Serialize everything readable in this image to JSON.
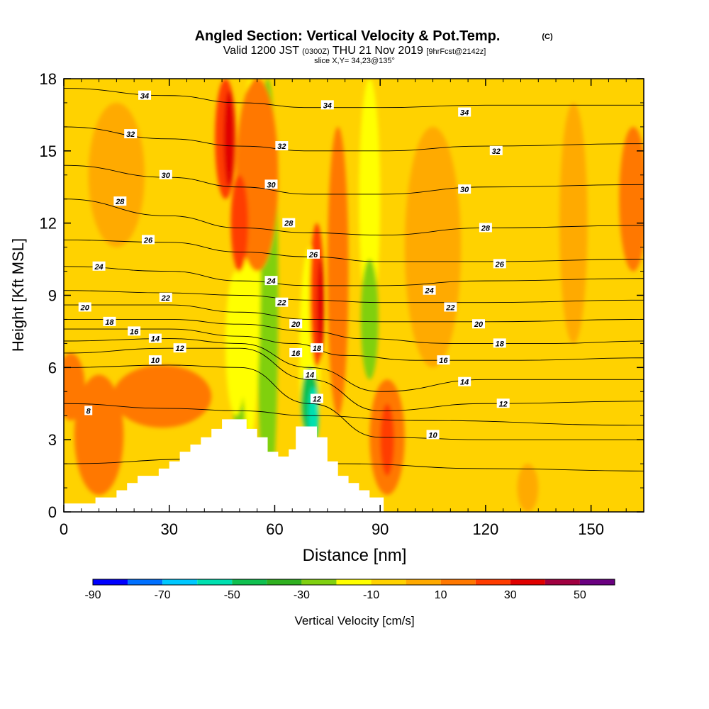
{
  "colors": {
    "background_field": "#ffd200",
    "contour": "#000000",
    "terrain": "#ffffff"
  },
  "chart_data": {
    "type": "heatmap",
    "title": "Angled Section: Vertical Velocity & Pot.Temp.",
    "title_mark": "(C)",
    "subtitle_parts": [
      "Valid 1200 JST",
      "(0300Z)",
      "THU 21 Nov 2019",
      "[9hrFcst@2142z]"
    ],
    "slice_text": "slice X,Y= 34,23@135°",
    "xlabel": "Distance [nm]",
    "ylabel": "Height [Kft MSL]",
    "xlim": [
      0,
      165
    ],
    "ylim": [
      0,
      18
    ],
    "xticks": [
      0,
      30,
      60,
      90,
      120,
      150
    ],
    "yticks": [
      0,
      3,
      6,
      9,
      12,
      15,
      18
    ],
    "grid": false,
    "colorbar": {
      "label": "Vertical Velocity [cm/s]",
      "bins": [
        -90,
        -80,
        -70,
        -60,
        -50,
        -40,
        -30,
        -20,
        -10,
        0,
        10,
        20,
        30,
        40,
        50,
        60
      ],
      "tick_labels": [
        "-90",
        "-70",
        "-50",
        "-30",
        "-10",
        "10",
        "30",
        "50"
      ],
      "tick_values": [
        -90,
        -70,
        -50,
        -30,
        -10,
        10,
        30,
        50
      ],
      "colors": [
        "#0000ff",
        "#0070ff",
        "#00c8ff",
        "#00e0b0",
        "#10c050",
        "#30b020",
        "#80d010",
        "#ffff00",
        "#ffd200",
        "#ffaa00",
        "#ff7800",
        "#ff3c00",
        "#e00000",
        "#a00040",
        "#6a0080"
      ]
    },
    "terrain": [
      [
        0,
        0
      ],
      [
        0,
        0.35
      ],
      [
        9,
        0.35
      ],
      [
        9,
        0.6
      ],
      [
        15,
        0.6
      ],
      [
        15,
        0.9
      ],
      [
        18,
        0.9
      ],
      [
        18,
        1.2
      ],
      [
        21,
        1.2
      ],
      [
        21,
        1.5
      ],
      [
        27,
        1.5
      ],
      [
        27,
        1.8
      ],
      [
        30,
        1.8
      ],
      [
        30,
        2.1
      ],
      [
        33,
        2.1
      ],
      [
        33,
        2.5
      ],
      [
        36,
        2.5
      ],
      [
        36,
        2.8
      ],
      [
        39,
        2.8
      ],
      [
        39,
        3.1
      ],
      [
        42,
        3.1
      ],
      [
        42,
        3.45
      ],
      [
        45,
        3.45
      ],
      [
        45,
        3.85
      ],
      [
        52,
        3.85
      ],
      [
        52,
        3.45
      ],
      [
        55,
        3.45
      ],
      [
        55,
        3.1
      ],
      [
        58,
        3.1
      ],
      [
        58,
        2.5
      ],
      [
        61,
        2.5
      ],
      [
        61,
        2.3
      ],
      [
        64,
        2.3
      ],
      [
        64,
        2.6
      ],
      [
        66,
        2.6
      ],
      [
        66,
        3.55
      ],
      [
        72,
        3.55
      ],
      [
        72,
        3.1
      ],
      [
        75,
        3.1
      ],
      [
        75,
        2.1
      ],
      [
        78,
        2.1
      ],
      [
        78,
        1.5
      ],
      [
        81,
        1.5
      ],
      [
        81,
        1.2
      ],
      [
        84,
        1.2
      ],
      [
        84,
        0.9
      ],
      [
        87,
        0.9
      ],
      [
        87,
        0.6
      ],
      [
        91,
        0.6
      ],
      [
        91,
        0
      ],
      [
        0,
        0
      ]
    ],
    "velocity_cells": [
      {
        "x": 58,
        "y": 9,
        "rx": 3,
        "ry": 9,
        "value": -25
      },
      {
        "x": 50,
        "y": 6,
        "rx": 3,
        "ry": 2.5,
        "value": -25
      },
      {
        "x": 49,
        "y": 7,
        "rx": 3,
        "ry": 3,
        "value": -15
      },
      {
        "x": 53,
        "y": 10.5,
        "rx": 3,
        "ry": 7.5,
        "value": -15
      },
      {
        "x": 70,
        "y": 6.5,
        "rx": 3,
        "ry": 4.5,
        "value": -15
      },
      {
        "x": 70,
        "y": 4.5,
        "rx": 2.5,
        "ry": 1.5,
        "value": -45
      },
      {
        "x": 71,
        "y": 4.0,
        "rx": 1.5,
        "ry": 1.2,
        "value": -55
      },
      {
        "x": 87,
        "y": 13,
        "rx": 3,
        "ry": 5,
        "value": -15
      },
      {
        "x": 87,
        "y": 8,
        "rx": 2.5,
        "ry": 2.5,
        "value": -25
      },
      {
        "x": 10,
        "y": 3.2,
        "rx": 7,
        "ry": 2.5,
        "value": 15
      },
      {
        "x": 2,
        "y": 5.2,
        "rx": 4,
        "ry": 1.4,
        "value": 15
      },
      {
        "x": 28,
        "y": 4.8,
        "rx": 14,
        "ry": 1.3,
        "value": 15
      },
      {
        "x": 92,
        "y": 3.1,
        "rx": 5,
        "ry": 2.4,
        "value": 15
      },
      {
        "x": 92,
        "y": 3.0,
        "rx": 2,
        "ry": 1.5,
        "value": 25
      },
      {
        "x": 55,
        "y": 14,
        "rx": 6,
        "ry": 4,
        "value": 15
      },
      {
        "x": 78,
        "y": 10,
        "rx": 3,
        "ry": 6,
        "value": 15
      },
      {
        "x": 162,
        "y": 13,
        "rx": 4,
        "ry": 3,
        "value": 15
      },
      {
        "x": 105,
        "y": 11,
        "rx": 8,
        "ry": 5,
        "value": 5
      },
      {
        "x": 145,
        "y": 12,
        "rx": 4,
        "ry": 5,
        "value": 5
      },
      {
        "x": 132,
        "y": 1,
        "rx": 3,
        "ry": 1,
        "value": 5
      },
      {
        "x": 15,
        "y": 14,
        "rx": 8,
        "ry": 3,
        "value": 5
      },
      {
        "x": 46,
        "y": 15.5,
        "rx": 3,
        "ry": 2.5,
        "value": 25
      },
      {
        "x": 47,
        "y": 15.5,
        "rx": 1.5,
        "ry": 2.0,
        "value": 35
      },
      {
        "x": 50,
        "y": 12,
        "rx": 2.5,
        "ry": 2.0,
        "value": 25
      },
      {
        "x": 72,
        "y": 9,
        "rx": 2.0,
        "ry": 3.0,
        "value": 25
      },
      {
        "x": 73,
        "y": 8.5,
        "rx": 1.0,
        "ry": 2.0,
        "value": 35
      }
    ],
    "contours": [
      {
        "level": 6,
        "points": [
          [
            0,
            2.0
          ],
          [
            40,
            2.2
          ],
          [
            80,
            2.0
          ],
          [
            120,
            1.8
          ],
          [
            165,
            1.7
          ]
        ]
      },
      {
        "level": 8,
        "points": [
          [
            0,
            4.5
          ],
          [
            30,
            4.3
          ],
          [
            50,
            4.2
          ],
          [
            70,
            4.0
          ],
          [
            100,
            3.8
          ],
          [
            165,
            3.6
          ]
        ]
      },
      {
        "level": 10,
        "points": [
          [
            0,
            6.0
          ],
          [
            30,
            6.1
          ],
          [
            50,
            6.0
          ],
          [
            70,
            4.5
          ],
          [
            90,
            3.1
          ],
          [
            120,
            3.0
          ],
          [
            165,
            3.0
          ]
        ]
      },
      {
        "level": 12,
        "points": [
          [
            0,
            6.6
          ],
          [
            30,
            6.8
          ],
          [
            50,
            6.8
          ],
          [
            70,
            5.5
          ],
          [
            90,
            4.2
          ],
          [
            120,
            4.5
          ],
          [
            165,
            4.6
          ]
        ]
      },
      {
        "level": 14,
        "points": [
          [
            0,
            7.1
          ],
          [
            30,
            7.2
          ],
          [
            50,
            7.0
          ],
          [
            70,
            6.0
          ],
          [
            90,
            5.0
          ],
          [
            120,
            5.5
          ],
          [
            165,
            5.5
          ]
        ]
      },
      {
        "level": 16,
        "points": [
          [
            0,
            7.6
          ],
          [
            30,
            7.6
          ],
          [
            50,
            7.3
          ],
          [
            65,
            7.0
          ],
          [
            80,
            6.5
          ],
          [
            100,
            6.3
          ],
          [
            130,
            6.3
          ],
          [
            165,
            6.4
          ]
        ]
      },
      {
        "level": 18,
        "points": [
          [
            0,
            8.0
          ],
          [
            30,
            8.0
          ],
          [
            50,
            7.8
          ],
          [
            70,
            7.5
          ],
          [
            85,
            7.2
          ],
          [
            110,
            7.0
          ],
          [
            140,
            7.0
          ],
          [
            165,
            7.1
          ]
        ]
      },
      {
        "level": 20,
        "points": [
          [
            0,
            8.6
          ],
          [
            30,
            8.6
          ],
          [
            50,
            8.3
          ],
          [
            70,
            8.0
          ],
          [
            90,
            7.9
          ],
          [
            120,
            7.9
          ],
          [
            165,
            8.0
          ]
        ]
      },
      {
        "level": 22,
        "points": [
          [
            0,
            9.2
          ],
          [
            30,
            9.1
          ],
          [
            50,
            9.0
          ],
          [
            70,
            8.8
          ],
          [
            90,
            8.7
          ],
          [
            120,
            8.7
          ],
          [
            165,
            8.8
          ]
        ]
      },
      {
        "level": 24,
        "points": [
          [
            0,
            10.2
          ],
          [
            30,
            10.0
          ],
          [
            50,
            9.6
          ],
          [
            70,
            9.4
          ],
          [
            90,
            9.4
          ],
          [
            120,
            9.6
          ],
          [
            165,
            9.7
          ]
        ]
      },
      {
        "level": 26,
        "points": [
          [
            0,
            11.3
          ],
          [
            30,
            11.2
          ],
          [
            50,
            10.8
          ],
          [
            70,
            10.6
          ],
          [
            90,
            10.4
          ],
          [
            120,
            10.4
          ],
          [
            165,
            10.5
          ]
        ]
      },
      {
        "level": 28,
        "points": [
          [
            0,
            13.0
          ],
          [
            30,
            12.3
          ],
          [
            50,
            11.8
          ],
          [
            70,
            11.6
          ],
          [
            90,
            11.5
          ],
          [
            120,
            11.8
          ],
          [
            165,
            11.9
          ]
        ]
      },
      {
        "level": 30,
        "points": [
          [
            0,
            14.4
          ],
          [
            30,
            13.9
          ],
          [
            50,
            13.5
          ],
          [
            70,
            13.2
          ],
          [
            90,
            13.2
          ],
          [
            120,
            13.5
          ],
          [
            165,
            13.6
          ]
        ]
      },
      {
        "level": 32,
        "points": [
          [
            0,
            16.0
          ],
          [
            30,
            15.5
          ],
          [
            50,
            15.2
          ],
          [
            70,
            15.0
          ],
          [
            90,
            15.0
          ],
          [
            120,
            15.2
          ],
          [
            165,
            15.3
          ]
        ]
      },
      {
        "level": 34,
        "points": [
          [
            0,
            17.6
          ],
          [
            30,
            17.3
          ],
          [
            50,
            17.0
          ],
          [
            70,
            16.8
          ],
          [
            90,
            16.8
          ],
          [
            120,
            16.9
          ],
          [
            165,
            16.9
          ]
        ]
      }
    ],
    "contour_labels": [
      {
        "text": "34",
        "x": 23,
        "y": 17.3
      },
      {
        "text": "34",
        "x": 75,
        "y": 16.9
      },
      {
        "text": "34",
        "x": 114,
        "y": 16.6
      },
      {
        "text": "32",
        "x": 19,
        "y": 15.7
      },
      {
        "text": "32",
        "x": 62,
        "y": 15.2
      },
      {
        "text": "32",
        "x": 123,
        "y": 15.0
      },
      {
        "text": "30",
        "x": 29,
        "y": 14.0
      },
      {
        "text": "30",
        "x": 59,
        "y": 13.6
      },
      {
        "text": "30",
        "x": 114,
        "y": 13.4
      },
      {
        "text": "28",
        "x": 16,
        "y": 12.9
      },
      {
        "text": "28",
        "x": 64,
        "y": 12.0
      },
      {
        "text": "28",
        "x": 120,
        "y": 11.8
      },
      {
        "text": "26",
        "x": 24,
        "y": 11.3
      },
      {
        "text": "26",
        "x": 71,
        "y": 10.7
      },
      {
        "text": "26",
        "x": 124,
        "y": 10.3
      },
      {
        "text": "24",
        "x": 10,
        "y": 10.2
      },
      {
        "text": "24",
        "x": 59,
        "y": 9.6
      },
      {
        "text": "24",
        "x": 104,
        "y": 9.2
      },
      {
        "text": "22",
        "x": 29,
        "y": 8.9
      },
      {
        "text": "22",
        "x": 62,
        "y": 8.7
      },
      {
        "text": "22",
        "x": 110,
        "y": 8.5
      },
      {
        "text": "20",
        "x": 6,
        "y": 8.5
      },
      {
        "text": "20",
        "x": 66,
        "y": 7.8
      },
      {
        "text": "20",
        "x": 118,
        "y": 7.8
      },
      {
        "text": "18",
        "x": 13,
        "y": 7.9
      },
      {
        "text": "18",
        "x": 72,
        "y": 6.8
      },
      {
        "text": "18",
        "x": 124,
        "y": 7.0
      },
      {
        "text": "16",
        "x": 20,
        "y": 7.5
      },
      {
        "text": "16",
        "x": 66,
        "y": 6.6
      },
      {
        "text": "16",
        "x": 108,
        "y": 6.3
      },
      {
        "text": "14",
        "x": 26,
        "y": 7.2
      },
      {
        "text": "14",
        "x": 70,
        "y": 5.7
      },
      {
        "text": "14",
        "x": 114,
        "y": 5.4
      },
      {
        "text": "12",
        "x": 33,
        "y": 6.8
      },
      {
        "text": "12",
        "x": 72,
        "y": 4.7
      },
      {
        "text": "12",
        "x": 125,
        "y": 4.5
      },
      {
        "text": "10",
        "x": 26,
        "y": 6.3
      },
      {
        "text": "10",
        "x": 105,
        "y": 3.2
      },
      {
        "text": "8",
        "x": 7,
        "y": 4.2
      }
    ]
  }
}
